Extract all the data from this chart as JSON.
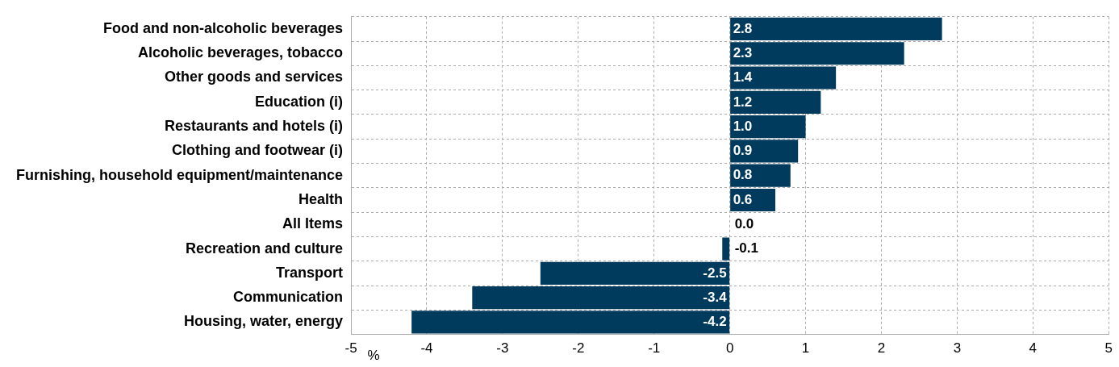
{
  "chart_data": {
    "type": "bar",
    "orientation": "horizontal",
    "xlabel": "%",
    "categories": [
      "Food and non-alcoholic beverages",
      "Alcoholic beverages, tobacco",
      "Other goods and services",
      "Education (i)",
      "Restaurants and hotels (i)",
      "Clothing and footwear (i)",
      "Furnishing, household equipment/maintenance",
      "Health",
      "All Items",
      "Recreation and culture",
      "Transport",
      "Communication",
      "Housing, water, energy"
    ],
    "values": [
      2.8,
      2.3,
      1.4,
      1.2,
      1.0,
      0.9,
      0.8,
      0.6,
      0.0,
      -0.1,
      -2.5,
      -3.4,
      -4.2
    ],
    "value_labels": [
      "2.8",
      "2.3",
      "1.4",
      "1.2",
      "1.0",
      "0.9",
      "0.8",
      "0.6",
      "0.0",
      "-0.1",
      "-2.5",
      "-3.4",
      "-4.2"
    ],
    "color": "#003a5c",
    "xlim": [
      -5,
      5
    ],
    "xticks": [
      -5,
      -4,
      -3,
      -2,
      -1,
      0,
      1,
      2,
      3,
      4,
      5
    ],
    "grid": true,
    "legend": false
  }
}
